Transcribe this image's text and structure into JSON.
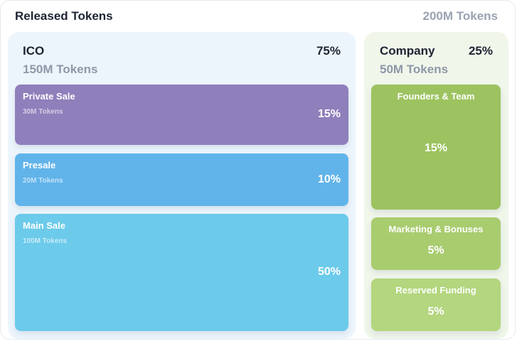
{
  "header": {
    "title": "Released Tokens",
    "total": "200M Tokens"
  },
  "ico": {
    "name": "ICO",
    "percent": "75%",
    "tokens": "150M Tokens",
    "items": [
      {
        "label": "Private Sale",
        "tokens": "30M Tokens",
        "percent": "15%",
        "color": "#8f7fbb"
      },
      {
        "label": "Presale",
        "tokens": "20M Tokens",
        "percent": "10%",
        "color": "#61b4ea"
      },
      {
        "label": "Main Sale",
        "tokens": "100M Tokens",
        "percent": "50%",
        "color": "#6ccaea"
      }
    ]
  },
  "company": {
    "name": "Company",
    "percent": "25%",
    "tokens": "50M Tokens",
    "items": [
      {
        "label": "Founders & Team",
        "percent": "15%",
        "color": "#9cc360"
      },
      {
        "label": "Marketing & Bonuses",
        "percent": "5%",
        "color": "#a9cc6f"
      },
      {
        "label": "Reserved Funding",
        "percent": "5%",
        "color": "#b3d67e"
      }
    ]
  }
}
